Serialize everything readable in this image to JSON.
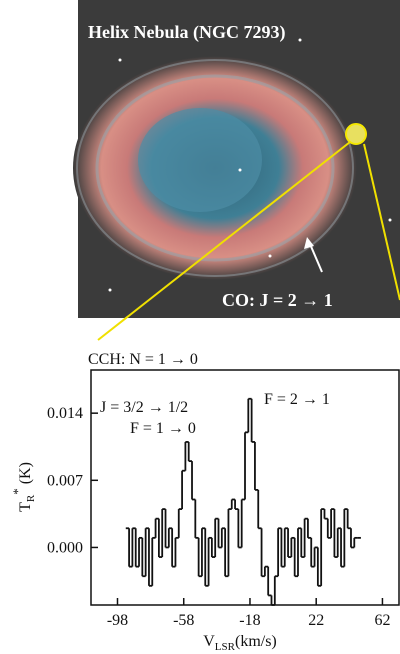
{
  "image": {
    "title": "Helix Nebula (NGC 7293)",
    "label": "CO: J = 2 → 1"
  },
  "chart_data": {
    "type": "step",
    "title": "CCH: N = 1 → 0",
    "xlabel": [
      "V",
      "LSR",
      "(km/s)"
    ],
    "ylabel": [
      "T",
      "R",
      "*",
      " (K)"
    ],
    "annotations": [
      "J = 3/2 → 1/2",
      "F = 1 → 0",
      "F = 2 → 1"
    ],
    "xlim": [
      -114,
      72
    ],
    "ylim": [
      -0.006,
      0.0185
    ],
    "xticks": [
      -98,
      -58,
      -18,
      22,
      62
    ],
    "yticks": [
      {
        "value": 0,
        "label": "0.000"
      },
      {
        "value": 0.007,
        "label": "0.007"
      },
      {
        "value": 0.014,
        "label": "0.014"
      }
    ],
    "color": "#111111",
    "x": [
      -92,
      -90,
      -88,
      -86,
      -84,
      -82,
      -80,
      -78,
      -76,
      -74,
      -72,
      -70,
      -68,
      -66,
      -64,
      -62,
      -60,
      -58,
      -56,
      -54,
      -52,
      -50,
      -48,
      -46,
      -44,
      -42,
      -40,
      -38,
      -36,
      -34,
      -32,
      -30,
      -28,
      -26,
      -24,
      -22,
      -20,
      -18,
      -16,
      -14,
      -12,
      -10,
      -8,
      -6,
      -4,
      -2,
      0,
      2,
      4,
      6,
      8,
      10,
      12,
      14,
      16,
      18,
      20,
      22,
      24,
      26,
      28,
      30,
      32,
      34,
      36,
      38,
      40,
      42,
      44,
      46,
      48
    ],
    "values": [
      0.002,
      -0.002,
      0.002,
      -0.002,
      0.001,
      -0.003,
      0.002,
      -0.004,
      0.001,
      0.003,
      -0.001,
      0.004,
      0.0,
      0.002,
      -0.002,
      0.001,
      0.004,
      0.008,
      0.011,
      0.009,
      0.005,
      0.001,
      -0.003,
      0.002,
      -0.004,
      0.001,
      -0.001,
      0.003,
      0.0,
      0.002,
      -0.003,
      0.004,
      0.005,
      0.004,
      0.0,
      0.005,
      0.012,
      0.0155,
      0.011,
      0.006,
      0.002,
      -0.003,
      -0.002,
      -0.005,
      -0.006,
      -0.003,
      0.002,
      -0.002,
      0.002,
      -0.001,
      0.001,
      -0.003,
      0.002,
      -0.001,
      0.003,
      0.001,
      -0.002,
      0.0,
      -0.004,
      0.004,
      0.003,
      0.001,
      0.004,
      -0.001,
      0.002,
      -0.002,
      0.004,
      0.002,
      0.0,
      0.001,
      0.001
    ]
  }
}
